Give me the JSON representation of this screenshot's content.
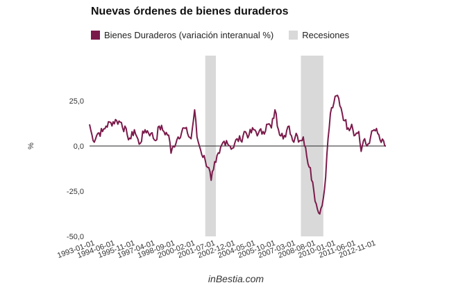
{
  "chart_data": {
    "type": "line",
    "title": "Nuevas órdenes de bienes duraderos",
    "ylabel": "%",
    "ylim": [
      -50,
      50
    ],
    "yticks": [
      -50,
      -25,
      0,
      25
    ],
    "ytick_labels": [
      "-50,0",
      "-25,0",
      "0,0",
      "25,0"
    ],
    "xlim": [
      "1993-01",
      "2013-12"
    ],
    "xtick_labels": [
      "1993-01-01",
      "1994-06-01",
      "1995-11-01",
      "1997-04-01",
      "1998-09-01",
      "2000-02-01",
      "2001-07-01",
      "2002-12-01",
      "2004-05-01",
      "2005-10-01",
      "2007-03-01",
      "2008-08-01",
      "2010-01-01",
      "2011-06-01",
      "2012-11-01"
    ],
    "legend": [
      {
        "label": "Bienes Duraderos (variación interanual %)",
        "color": "#7a1a4a"
      },
      {
        "label": "Recesiones",
        "color": "#d9d9d9"
      }
    ],
    "recessions": [
      {
        "start": "2001-03",
        "end": "2001-11"
      },
      {
        "start": "2007-12",
        "end": "2009-06"
      }
    ],
    "series": [
      {
        "name": "Bienes Duraderos (variación interanual %)",
        "color": "#7a1a4a",
        "x_start": "1993-01",
        "frequency": "monthly",
        "points": [
          [
            "1993-01",
            12
          ],
          [
            "1993-04",
            3
          ],
          [
            "1993-08",
            7
          ],
          [
            "1993-12",
            8
          ],
          [
            "1994-03",
            11
          ],
          [
            "1994-07",
            13
          ],
          [
            "1994-12",
            14
          ],
          [
            "1995-04",
            13
          ],
          [
            "1995-09",
            6
          ],
          [
            "1995-12",
            4
          ],
          [
            "1996-03",
            9
          ],
          [
            "1996-07",
            1
          ],
          [
            "1996-12",
            9
          ],
          [
            "1997-05",
            7
          ],
          [
            "1997-09",
            3
          ],
          [
            "1997-12",
            11
          ],
          [
            "1998-04",
            8
          ],
          [
            "1998-08",
            6
          ],
          [
            "1998-10",
            -4
          ],
          [
            "1998-12",
            0
          ],
          [
            "1999-04",
            5
          ],
          [
            "1999-09",
            10
          ],
          [
            "1999-12",
            7
          ],
          [
            "2000-03",
            4
          ],
          [
            "2000-06",
            20
          ],
          [
            "2000-08",
            5
          ],
          [
            "2000-11",
            -2
          ],
          [
            "2001-03",
            -8
          ],
          [
            "2001-06",
            -12
          ],
          [
            "2001-08",
            -19
          ],
          [
            "2001-10",
            -13
          ],
          [
            "2001-12",
            -9
          ],
          [
            "2002-03",
            -4
          ],
          [
            "2002-06",
            2
          ],
          [
            "2002-09",
            3
          ],
          [
            "2002-12",
            0
          ],
          [
            "2003-03",
            -1
          ],
          [
            "2003-06",
            4
          ],
          [
            "2003-09",
            3
          ],
          [
            "2003-12",
            8
          ],
          [
            "2004-04",
            6
          ],
          [
            "2004-08",
            9
          ],
          [
            "2004-12",
            7
          ],
          [
            "2005-04",
            8
          ],
          [
            "2005-08",
            12
          ],
          [
            "2005-11",
            10
          ],
          [
            "2006-02",
            20
          ],
          [
            "2006-05",
            9
          ],
          [
            "2006-08",
            7
          ],
          [
            "2006-11",
            5
          ],
          [
            "2007-02",
            11
          ],
          [
            "2007-05",
            3
          ],
          [
            "2007-08",
            7
          ],
          [
            "2007-11",
            3
          ],
          [
            "2008-02",
            5
          ],
          [
            "2008-05",
            -6
          ],
          [
            "2008-08",
            -12
          ],
          [
            "2008-11",
            -25
          ],
          [
            "2009-01",
            -32
          ],
          [
            "2009-03",
            -37
          ],
          [
            "2009-06",
            -33
          ],
          [
            "2009-08",
            -24
          ],
          [
            "2009-10",
            -5
          ],
          [
            "2010-01",
            18
          ],
          [
            "2010-04",
            24
          ],
          [
            "2010-07",
            28
          ],
          [
            "2010-10",
            21
          ],
          [
            "2011-01",
            14
          ],
          [
            "2011-04",
            10
          ],
          [
            "2011-07",
            12
          ],
          [
            "2011-10",
            6
          ],
          [
            "2012-01",
            8
          ],
          [
            "2012-03",
            -3
          ],
          [
            "2012-05",
            3
          ],
          [
            "2012-08",
            0
          ],
          [
            "2012-11",
            5
          ],
          [
            "2013-02",
            9
          ],
          [
            "2013-05",
            7
          ],
          [
            "2013-08",
            2
          ],
          [
            "2013-12",
            0
          ]
        ]
      }
    ]
  },
  "footer": "inBestia.com"
}
